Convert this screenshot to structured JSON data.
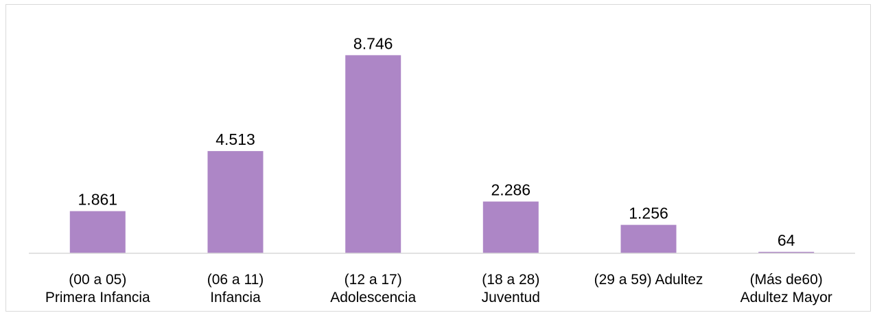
{
  "chart_data": {
    "type": "bar",
    "categories": [
      [
        "(00 a 05)",
        "Primera Infancia"
      ],
      [
        "(06 a 11)",
        "Infancia"
      ],
      [
        "(12 a 17)",
        "Adolescencia"
      ],
      [
        "(18 a 28)",
        "Juventud"
      ],
      [
        "(29 a 59) Adultez"
      ],
      [
        "(Más de60)",
        "Adultez Mayor"
      ]
    ],
    "values": [
      1861,
      4513,
      8746,
      2286,
      1256,
      64
    ],
    "value_labels": [
      "1.861",
      "4.513",
      "8.746",
      "2.286",
      "1.256",
      "64"
    ],
    "title": "",
    "xlabel": "",
    "ylabel": "",
    "ylim": [
      0,
      10000
    ],
    "grid": false,
    "legend": "none",
    "bar_color": "#ad86c6"
  }
}
